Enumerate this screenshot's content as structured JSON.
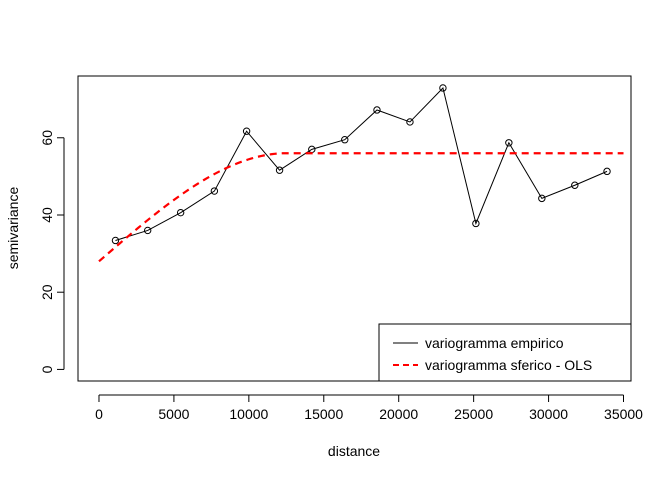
{
  "chart_data": {
    "type": "line",
    "title": "",
    "xlabel": "distance",
    "ylabel": "semivariance",
    "xlim": [
      -1400,
      35500
    ],
    "ylim": [
      -3,
      76
    ],
    "xticks": [
      0,
      5000,
      10000,
      15000,
      20000,
      25000,
      30000,
      35000
    ],
    "yticks": [
      0,
      20,
      40,
      60
    ],
    "grid": false,
    "legend_position": "bottom-right",
    "series": [
      {
        "name": "variogramma empirico",
        "style": "solid-line-with-circles",
        "color": "#000000",
        "x": [
          1100,
          3250,
          5450,
          7700,
          9850,
          12050,
          14200,
          16400,
          18550,
          20750,
          22950,
          25150,
          27350,
          29550,
          31750,
          33900
        ],
        "y": [
          33.4,
          36.0,
          40.6,
          46.2,
          61.7,
          51.6,
          57.0,
          59.5,
          67.2,
          64.1,
          72.9,
          37.8,
          58.7,
          44.3,
          47.7,
          51.3
        ]
      },
      {
        "name": "variogramma sferico - OLS",
        "style": "dashed-line",
        "color": "#ff0000",
        "model": "spherical",
        "nugget": 28.0,
        "sill": 56.0,
        "range": 12500,
        "x_from": 0,
        "x_to": 35000
      }
    ]
  }
}
